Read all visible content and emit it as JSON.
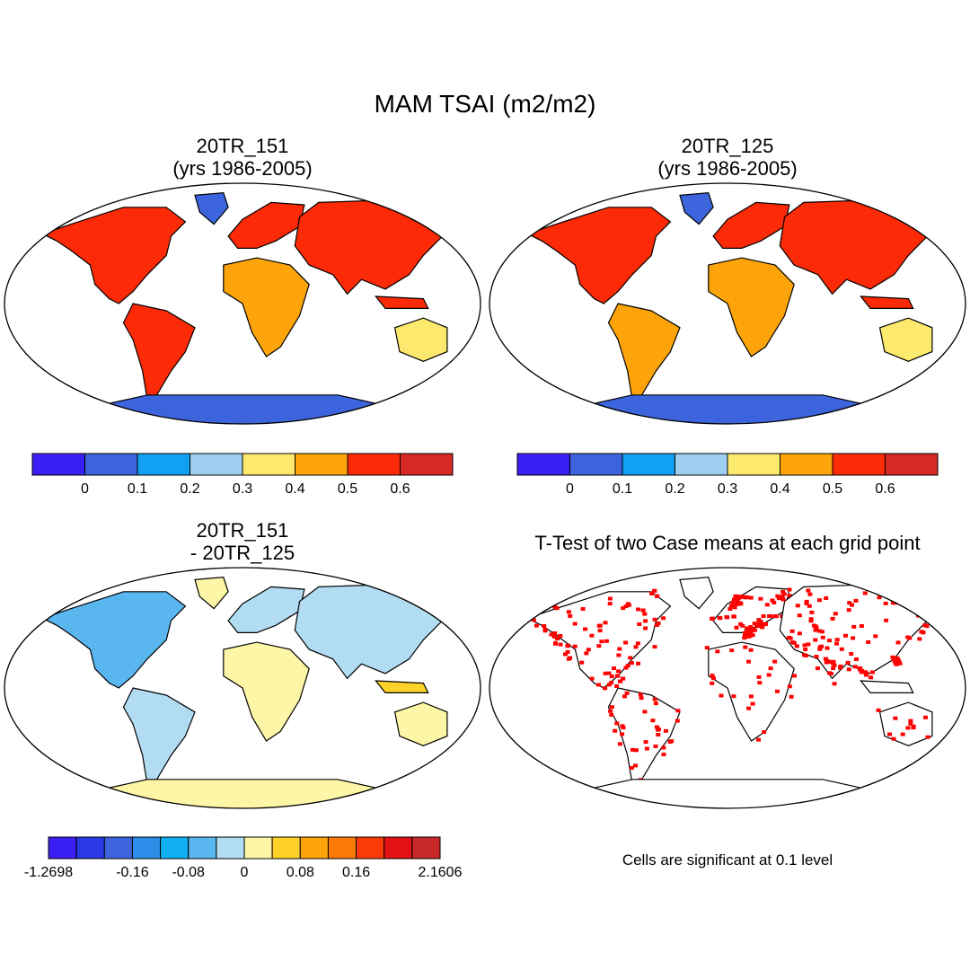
{
  "main_title": "MAM TSAI (m2/m2)",
  "panels": [
    {
      "id": "p1",
      "title_line1": "20TR_151",
      "title_line2": "(yrs 1986-2005)"
    },
    {
      "id": "p2",
      "title_line1": "20TR_125",
      "title_line2": "(yrs 1986-2005)"
    },
    {
      "id": "p3",
      "title_line1": "20TR_151",
      "title_line2": "- 20TR_125"
    },
    {
      "id": "p4",
      "title_line1": "T-Test of two Case means at each grid point",
      "title_line2": ""
    }
  ],
  "colorbar_abs": {
    "colors": [
      "#3a1ff5",
      "#3c64dc",
      "#12a0f2",
      "#9ecff0",
      "#fde96e",
      "#fca40a",
      "#fc2a06",
      "#d72a25"
    ],
    "labels": [
      "0",
      "0.1",
      "0.2",
      "0.3",
      "0.4",
      "0.5",
      "0.6"
    ]
  },
  "colorbar_diff": {
    "colors": [
      "#3a1ff5",
      "#2a3ae6",
      "#3c64dc",
      "#2c8ee8",
      "#12b0f2",
      "#5ab6ee",
      "#b2dcf2",
      "#fdf6a6",
      "#fdd02a",
      "#fca40a",
      "#fc7a06",
      "#fc3a06",
      "#e41212",
      "#c82828"
    ],
    "labels": [
      "-1.2698",
      "-0.16",
      "-0.08",
      "0",
      "0.08",
      "0.16",
      "2.1606"
    ]
  },
  "significance_color": "#ff0000",
  "ttest_note": "Cells are significant at 0.1 level"
}
